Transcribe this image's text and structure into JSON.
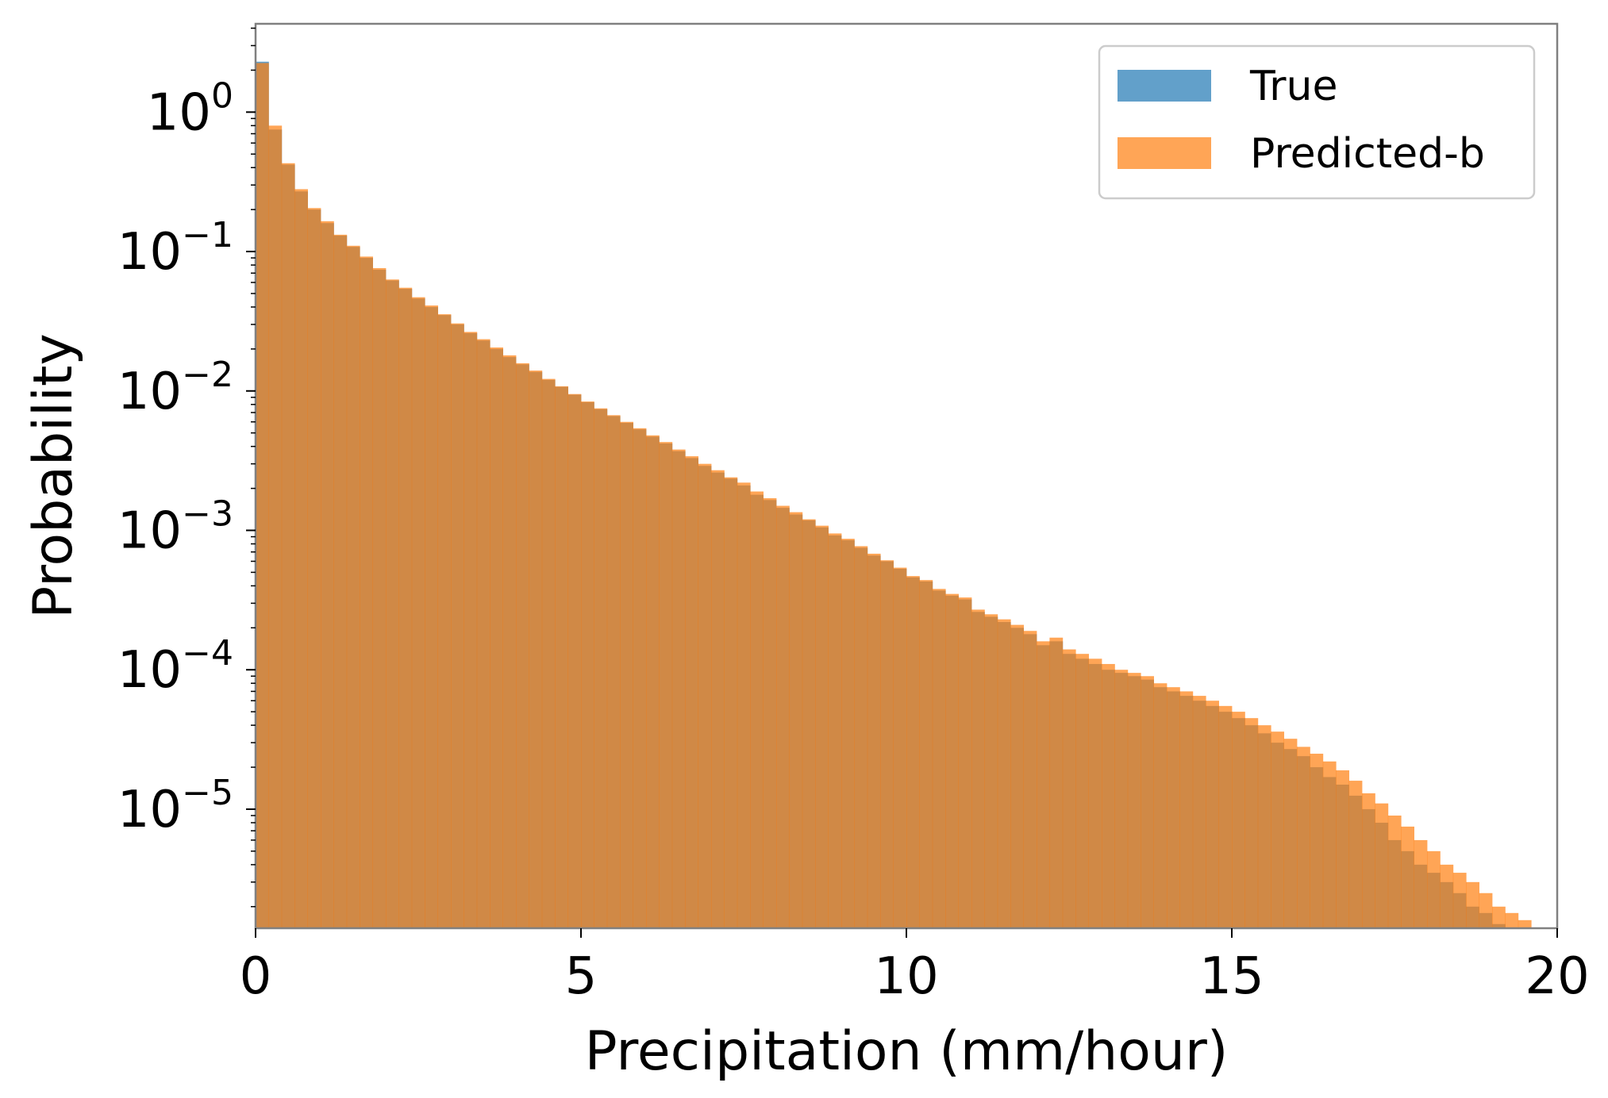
{
  "chart_data": {
    "type": "histogram",
    "xlabel": "Precipitation (mm/hour)",
    "ylabel": "Probability",
    "xlim": [
      0,
      20
    ],
    "ylim": [
      1.4e-06,
      4.3
    ],
    "yscale": "log",
    "grid": false,
    "legend_position": "top-right",
    "bin_width": 0.2,
    "x_ticks": [
      "0",
      "5",
      "10",
      "15",
      "20"
    ],
    "y_ticks": [
      {
        "base": "10",
        "exp": "0"
      },
      {
        "base": "10",
        "exp": "−1"
      },
      {
        "base": "10",
        "exp": "−2"
      },
      {
        "base": "10",
        "exp": "−3"
      },
      {
        "base": "10",
        "exp": "−4"
      },
      {
        "base": "10",
        "exp": "−5"
      }
    ],
    "series": [
      {
        "name": "True",
        "color": "#1f77b4",
        "opacity": 0.7,
        "values": [
          2.3,
          0.75,
          0.42,
          0.27,
          0.2,
          0.16,
          0.13,
          0.108,
          0.09,
          0.074,
          0.062,
          0.054,
          0.046,
          0.04,
          0.035,
          0.03,
          0.026,
          0.023,
          0.02,
          0.0175,
          0.0155,
          0.0137,
          0.012,
          0.0107,
          0.0094,
          0.0083,
          0.0074,
          0.0066,
          0.0059,
          0.0053,
          0.0047,
          0.0042,
          0.0037,
          0.0033,
          0.0029,
          0.0026,
          0.00235,
          0.0021,
          0.0018,
          0.00165,
          0.00145,
          0.0013,
          0.00118,
          0.00105,
          0.00092,
          0.00085,
          0.00075,
          0.00066,
          0.0006,
          0.00053,
          0.00046,
          0.00043,
          0.00037,
          0.00034,
          0.00032,
          0.00026,
          0.00024,
          0.00022,
          0.0002,
          0.00018,
          0.00015,
          0.00016,
          0.00013,
          0.00012,
          0.00011,
          0.0001,
          9.5e-05,
          9e-05,
          8.5e-05,
          7.5e-05,
          7e-05,
          6.5e-05,
          6e-05,
          5.5e-05,
          5e-05,
          4.5e-05,
          4e-05,
          3.5e-05,
          3e-05,
          2.7e-05,
          2.4e-05,
          2e-05,
          1.7e-05,
          1.5e-05,
          1.25e-05,
          1e-05,
          8e-06,
          6e-06,
          5e-06,
          4e-06,
          3.5e-06,
          3e-06,
          2.5e-06,
          2e-06,
          1.8e-06,
          1.5e-06,
          1.3e-06,
          1.2e-06,
          1e-06,
          9e-07
        ]
      },
      {
        "name": "Predicted-b",
        "color": "#ff7f0e",
        "opacity": 0.7,
        "values": [
          2.25,
          0.8,
          0.43,
          0.28,
          0.205,
          0.165,
          0.132,
          0.11,
          0.092,
          0.076,
          0.063,
          0.055,
          0.047,
          0.041,
          0.0355,
          0.0305,
          0.0265,
          0.0235,
          0.0205,
          0.018,
          0.0158,
          0.014,
          0.0122,
          0.0108,
          0.0095,
          0.0084,
          0.0075,
          0.0067,
          0.006,
          0.0054,
          0.0048,
          0.0043,
          0.0038,
          0.0034,
          0.003,
          0.0027,
          0.0024,
          0.0022,
          0.0019,
          0.0017,
          0.0015,
          0.00135,
          0.0012,
          0.00108,
          0.00095,
          0.00087,
          0.00077,
          0.00068,
          0.00061,
          0.00054,
          0.00047,
          0.00044,
          0.00038,
          0.00035,
          0.00033,
          0.00027,
          0.00025,
          0.00023,
          0.00021,
          0.00019,
          0.00016,
          0.00017,
          0.00014,
          0.00013,
          0.00012,
          0.00011,
          0.0001,
          9.5e-05,
          9e-05,
          8e-05,
          7.5e-05,
          7e-05,
          6.5e-05,
          6e-05,
          5.5e-05,
          5e-05,
          4.5e-05,
          4e-05,
          3.6e-05,
          3.2e-05,
          2.8e-05,
          2.5e-05,
          2.2e-05,
          1.9e-05,
          1.6e-05,
          1.3e-05,
          1.1e-05,
          9e-06,
          7.5e-06,
          6e-06,
          5e-06,
          4e-06,
          3.5e-06,
          3e-06,
          2.5e-06,
          2e-06,
          1.8e-06,
          1.6e-06,
          1.4e-06,
          1.2e-06
        ]
      }
    ]
  }
}
